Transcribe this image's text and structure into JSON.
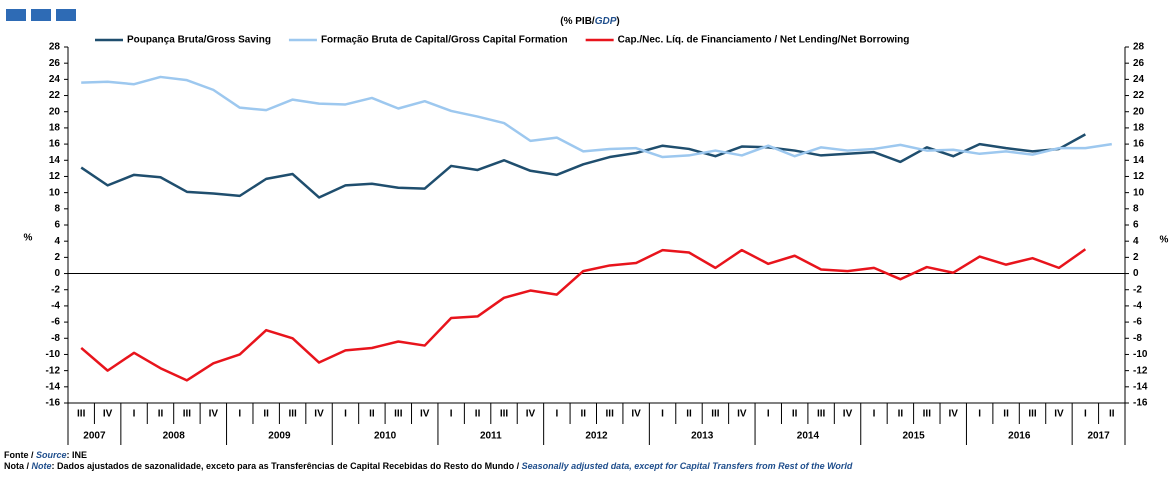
{
  "chart_data": {
    "type": "line",
    "title": [
      "(% PIB/",
      "GDP",
      ")"
    ],
    "ylabel": "%",
    "categories": [
      "III",
      "IV",
      "I",
      "II",
      "III",
      "IV",
      "I",
      "II",
      "III",
      "IV",
      "I",
      "II",
      "III",
      "IV",
      "I",
      "II",
      "III",
      "IV",
      "I",
      "II",
      "III",
      "IV",
      "I",
      "II",
      "III",
      "IV",
      "I",
      "II",
      "III",
      "IV",
      "I",
      "II",
      "III",
      "IV",
      "I",
      "II",
      "III",
      "IV",
      "I",
      "II"
    ],
    "years": [
      "2007",
      "2008",
      "2009",
      "2010",
      "2011",
      "2012",
      "2013",
      "2014",
      "2015",
      "2016",
      "2017"
    ],
    "series": [
      {
        "name": "Poupança Bruta/Gross Saving",
        "color": "#1f4e6e",
        "values": [
          13.1,
          10.9,
          12.2,
          11.9,
          10.1,
          9.9,
          9.6,
          11.7,
          12.3,
          9.4,
          10.9,
          11.1,
          10.6,
          10.5,
          13.3,
          12.8,
          14.0,
          12.7,
          12.2,
          13.5,
          14.4,
          14.9,
          15.8,
          15.4,
          14.5,
          15.7,
          15.6,
          15.2,
          14.6,
          14.8,
          15.0,
          13.8,
          15.6,
          14.5,
          16.0,
          15.5,
          15.1,
          15.4,
          17.2,
          null
        ]
      },
      {
        "name": "Formação Bruta de Capital/Gross Capital Formation",
        "color": "#9dc8ef",
        "values": [
          23.6,
          23.7,
          23.4,
          24.3,
          23.9,
          22.7,
          20.5,
          20.2,
          21.5,
          21.0,
          20.9,
          21.7,
          20.4,
          21.3,
          20.1,
          19.4,
          18.6,
          16.4,
          16.8,
          15.1,
          15.4,
          15.5,
          14.4,
          14.6,
          15.2,
          14.6,
          15.8,
          14.5,
          15.6,
          15.2,
          15.4,
          15.9,
          15.2,
          15.3,
          14.8,
          15.1,
          14.7,
          15.5,
          15.5,
          16.0
        ]
      },
      {
        "name": "Cap./Nec. Líq. de Financiamento / Net Lending/Net Borrowing",
        "color": "#e8141c",
        "values": [
          -9.2,
          -12.0,
          -9.8,
          -11.7,
          -13.2,
          -11.1,
          -10.0,
          -7.0,
          -8.0,
          -11.0,
          -9.5,
          -9.2,
          -8.4,
          -8.9,
          -5.5,
          -5.3,
          -3.0,
          -2.1,
          -2.6,
          0.3,
          1.0,
          1.3,
          2.9,
          2.6,
          0.7,
          2.9,
          1.2,
          2.2,
          0.5,
          0.3,
          0.7,
          -0.7,
          0.8,
          0.1,
          2.1,
          1.1,
          1.9,
          0.7,
          3.0,
          null
        ]
      }
    ],
    "ylim": [
      -16,
      28
    ],
    "yticks": [
      -16,
      -14,
      -12,
      -10,
      -8,
      -6,
      -4,
      -2,
      0,
      2,
      4,
      6,
      8,
      10,
      12,
      14,
      16,
      18,
      20,
      22,
      24,
      26,
      28
    ],
    "source": [
      "Fonte / ",
      "Source",
      ":  INE"
    ],
    "note": [
      "Nota / ",
      "Note",
      ": Dados ajustados de sazonalidade, exceto para as Transferências de Capital Recebidas do Resto do Mundo / ",
      "Seasonally adjusted data, except for Capital Transfers from Rest of the World"
    ]
  }
}
